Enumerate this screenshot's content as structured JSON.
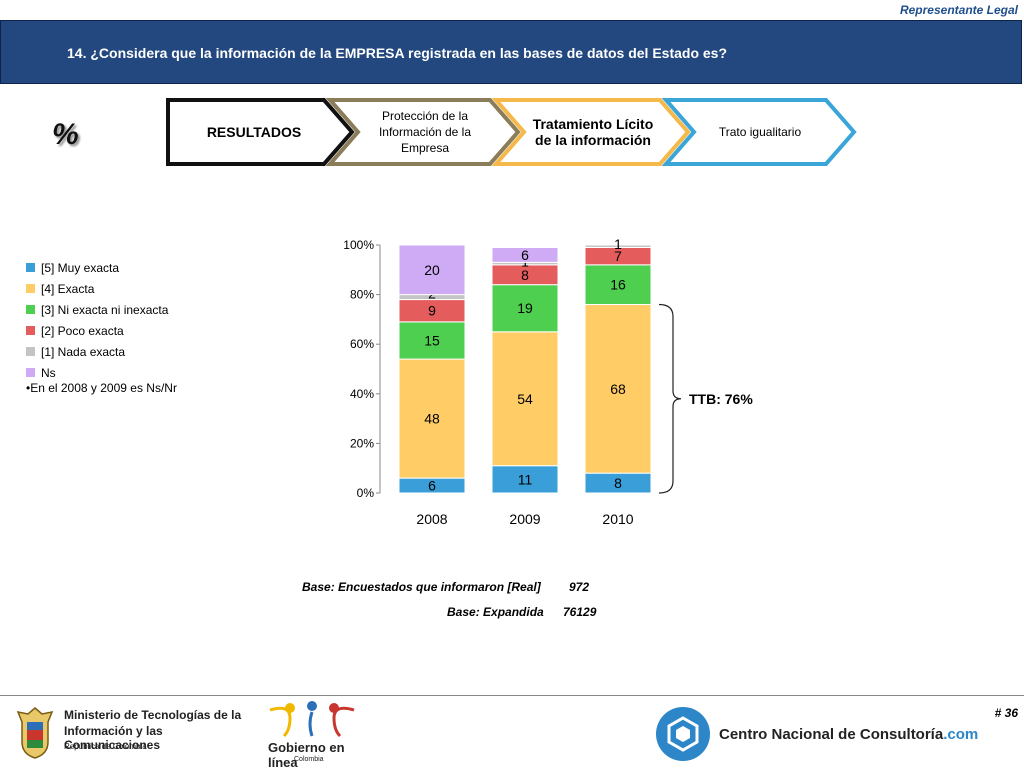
{
  "header": {
    "tag": "Representante Legal",
    "title": "14. ¿Considera que la información de la EMPRESA registrada en las bases de datos del Estado es?"
  },
  "percent_symbol": "%",
  "steps": [
    {
      "label": "RESULTADOS"
    },
    {
      "label": "Protección de la Información de la Empresa"
    },
    {
      "label": "Tratamiento Lícito de la información"
    },
    {
      "label": "Trato igualitario"
    }
  ],
  "legend": {
    "items": [
      {
        "label": "[5] Muy exacta",
        "color": "#3a9fd8"
      },
      {
        "label": "[4] Exacta",
        "color": "#ffcc66"
      },
      {
        "label": "[3] Ni exacta ni inexacta",
        "color": "#4fcf4f"
      },
      {
        "label": "[2] Poco exacta",
        "color": "#e45c5c"
      },
      {
        "label": "[1] Nada exacta",
        "color": "#c4c4c4"
      },
      {
        "label": "Ns",
        "color": "#cfaaf5"
      }
    ],
    "note": "•En el 2008 y 2009 es Ns/Nr"
  },
  "chart_data": {
    "type": "bar",
    "stacked": true,
    "categories": [
      "2008",
      "2009",
      "2010"
    ],
    "series": [
      {
        "name": "[5] Muy exacta",
        "color": "#3a9fd8",
        "values": [
          6,
          11,
          8
        ]
      },
      {
        "name": "[4] Exacta",
        "color": "#ffcc66",
        "values": [
          48,
          54,
          68
        ]
      },
      {
        "name": "[3] Ni exacta ni inexacta",
        "color": "#4fcf4f",
        "values": [
          15,
          19,
          16
        ]
      },
      {
        "name": "[2] Poco exacta",
        "color": "#e45c5c",
        "values": [
          9,
          8,
          7
        ]
      },
      {
        "name": "[1] Nada exacta",
        "color": "#c4c4c4",
        "values": [
          2,
          1,
          1
        ]
      },
      {
        "name": "Ns",
        "color": "#cfaaf5",
        "values": [
          20,
          6,
          null
        ]
      }
    ],
    "y_ticks": [
      "0%",
      "20%",
      "40%",
      "60%",
      "80%",
      "100%"
    ],
    "ylim": [
      0,
      100
    ],
    "annotation": "TTB: 76%"
  },
  "bases": {
    "real_label": "Base: Encuestados que informaron [Real]",
    "real_value": "972",
    "expanded_label": "Base: Expandida",
    "expanded_value": "76129"
  },
  "footer": {
    "page": "# 36",
    "ministry": [
      "Ministerio de Tecnologías de la",
      "Información y las Comunicaciones",
      "República de Colombia"
    ],
    "gobierno": "Gobierno en línea",
    "gobierno_sub": "Colombia",
    "cnc": "Centro Nacional de Consultoría",
    "cnc_suffix": ".com"
  }
}
